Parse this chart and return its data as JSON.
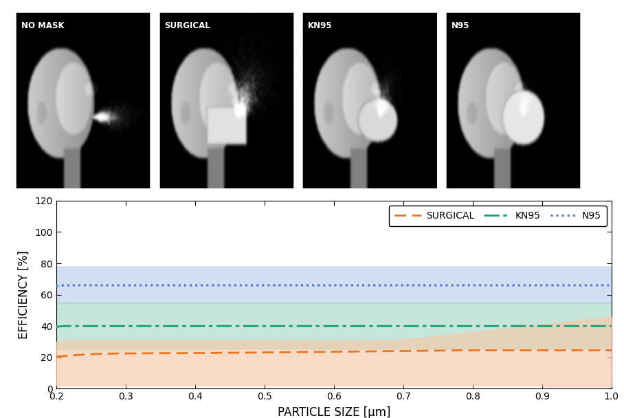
{
  "x_min": 0.2,
  "x_max": 1.0,
  "y_min": 0,
  "y_max": 120,
  "yticks": [
    0,
    20,
    40,
    60,
    80,
    100,
    120
  ],
  "xticks": [
    0.2,
    0.3,
    0.4,
    0.5,
    0.6,
    0.7,
    0.8,
    0.9,
    1.0
  ],
  "xlabel": "PARTICLE SIZE [μm]",
  "ylabel": "EFFICIENCY [%]",
  "surgical_color": "#e87722",
  "kn95_color": "#1a9e7a",
  "n95_color": "#4472c4",
  "surgical_fill": "#f5c9a8",
  "kn95_fill": "#a8d8c8",
  "n95_fill": "#adc6e8",
  "surgical_mean": [
    20.5,
    20.8,
    21.2,
    21.5,
    21.8,
    22.0,
    22.2,
    22.3,
    22.4,
    22.5,
    22.5,
    22.5,
    22.6,
    22.6,
    22.7,
    22.7,
    22.7,
    22.7,
    22.7,
    22.8,
    22.8,
    22.8,
    22.8,
    22.9,
    22.9,
    23.0,
    23.0,
    23.0,
    23.1,
    23.1,
    23.2,
    23.2,
    23.2,
    23.3,
    23.3,
    23.4,
    23.4,
    23.5,
    23.5,
    23.6,
    23.6,
    23.7,
    23.7,
    23.8,
    23.8,
    23.9,
    23.9,
    24.0,
    24.0,
    24.1,
    24.1,
    24.2,
    24.2,
    24.3,
    24.3,
    24.4,
    24.4,
    24.5,
    24.5,
    24.5,
    24.5,
    24.5,
    24.5,
    24.5,
    24.5,
    24.5,
    24.5,
    24.5,
    24.5,
    24.5,
    24.5,
    24.5,
    24.5,
    24.5,
    24.5,
    24.5,
    24.5,
    24.5,
    24.5,
    24.5
  ],
  "surgical_upper": [
    30.0,
    30.5,
    31.0,
    31.0,
    31.0,
    31.0,
    31.0,
    31.0,
    31.0,
    31.0,
    31.0,
    31.0,
    31.0,
    31.0,
    31.0,
    31.0,
    31.0,
    31.0,
    31.0,
    31.0,
    31.0,
    31.0,
    31.0,
    31.0,
    31.0,
    31.0,
    31.0,
    31.0,
    31.0,
    31.0,
    31.0,
    31.0,
    31.0,
    31.0,
    31.0,
    31.0,
    31.0,
    31.0,
    31.0,
    31.0,
    31.0,
    31.0,
    31.0,
    31.0,
    31.0,
    31.0,
    31.0,
    31.0,
    31.0,
    31.5,
    32.0,
    32.0,
    32.5,
    33.0,
    33.5,
    34.0,
    34.5,
    35.0,
    35.5,
    36.0,
    36.5,
    37.0,
    37.5,
    38.0,
    38.5,
    39.0,
    39.5,
    40.0,
    40.5,
    41.0,
    41.5,
    42.0,
    42.5,
    43.0,
    43.5,
    44.0,
    44.5,
    45.0,
    45.5,
    46.0
  ],
  "surgical_lower": [
    2.0,
    2.0,
    2.0,
    2.0,
    2.0,
    2.0,
    2.0,
    2.0,
    2.0,
    2.0,
    2.0,
    2.0,
    2.0,
    2.0,
    2.0,
    2.0,
    2.0,
    2.0,
    2.0,
    2.0,
    2.0,
    2.0,
    2.0,
    2.0,
    2.0,
    2.0,
    2.0,
    2.0,
    2.0,
    2.0,
    2.0,
    2.0,
    2.0,
    2.0,
    2.0,
    2.0,
    2.0,
    2.0,
    2.0,
    2.0,
    2.0,
    2.0,
    2.0,
    2.0,
    2.0,
    2.0,
    2.0,
    2.0,
    2.0,
    2.0,
    2.0,
    2.0,
    2.0,
    2.0,
    2.0,
    2.0,
    2.0,
    2.0,
    2.0,
    2.0,
    2.0,
    2.0,
    2.0,
    2.0,
    2.0,
    2.0,
    2.0,
    2.0,
    2.0,
    2.0,
    1.5,
    1.5,
    1.5,
    1.5,
    1.5,
    1.5,
    1.5,
    1.5,
    1.5,
    1.5
  ],
  "kn95_mean": [
    39.5,
    40.0,
    40.0,
    40.0,
    40.0,
    40.0,
    40.0,
    40.0,
    40.0,
    40.0,
    40.0,
    40.0,
    40.0,
    40.0,
    40.0,
    40.0,
    40.0,
    40.0,
    40.0,
    40.0,
    40.0,
    40.0,
    40.0,
    40.0,
    40.0,
    40.0,
    40.0,
    40.0,
    40.0,
    40.0,
    40.0,
    40.0,
    40.0,
    40.0,
    40.0,
    40.0,
    40.0,
    40.0,
    40.0,
    40.0,
    40.0,
    40.0,
    40.0,
    40.0,
    40.0,
    40.0,
    40.0,
    40.0,
    40.0,
    40.0,
    40.0,
    40.0,
    40.0,
    40.0,
    40.0,
    40.0,
    40.0,
    40.0,
    40.0,
    40.0,
    40.0,
    40.0,
    40.0,
    40.0,
    40.0,
    40.0,
    40.0,
    40.0,
    40.0,
    40.0,
    40.0,
    40.0,
    40.0,
    40.0,
    40.0,
    40.0,
    40.0,
    40.0,
    40.0,
    40.0
  ],
  "kn95_upper": [
    55.0,
    55.0,
    55.0,
    55.0,
    55.0,
    55.0,
    55.0,
    55.0,
    55.0,
    55.0,
    55.0,
    55.0,
    55.0,
    55.0,
    55.0,
    55.0,
    55.0,
    55.0,
    55.0,
    55.0,
    55.0,
    55.0,
    55.0,
    55.0,
    55.0,
    55.0,
    55.0,
    55.0,
    55.0,
    55.0,
    55.0,
    55.0,
    55.0,
    55.0,
    55.0,
    55.0,
    55.0,
    55.0,
    55.0,
    55.0,
    55.0,
    55.0,
    55.0,
    55.0,
    55.0,
    55.0,
    55.0,
    55.0,
    55.0,
    55.0,
    55.0,
    55.0,
    55.0,
    55.0,
    55.0,
    55.0,
    55.0,
    55.0,
    55.0,
    55.0,
    55.0,
    55.0,
    55.0,
    55.0,
    55.0,
    55.0,
    55.0,
    55.0,
    55.0,
    55.0,
    55.0,
    55.0,
    55.0,
    55.0,
    55.0,
    55.0,
    55.0,
    55.0,
    55.0,
    55.0
  ],
  "kn95_lower": [
    25.0,
    25.5,
    25.5,
    25.5,
    25.5,
    25.5,
    25.5,
    25.5,
    25.5,
    25.5,
    25.5,
    25.5,
    25.5,
    25.5,
    25.5,
    25.5,
    25.5,
    25.5,
    25.5,
    25.5,
    25.5,
    25.5,
    25.5,
    25.5,
    25.5,
    25.5,
    25.5,
    25.5,
    25.5,
    25.5,
    25.5,
    25.5,
    25.5,
    25.5,
    25.5,
    25.5,
    25.5,
    25.5,
    25.5,
    25.5,
    25.5,
    25.5,
    25.5,
    25.5,
    25.5,
    25.5,
    25.5,
    25.5,
    25.5,
    25.5,
    25.5,
    25.5,
    25.5,
    25.5,
    25.5,
    25.5,
    25.5,
    25.5,
    25.5,
    25.5,
    25.5,
    25.5,
    25.5,
    25.5,
    25.5,
    25.5,
    25.5,
    25.5,
    25.5,
    25.5,
    25.5,
    25.5,
    25.5,
    25.5,
    25.5,
    25.5,
    25.5,
    25.5,
    25.5,
    25.5
  ],
  "n95_mean": [
    65.5,
    66.0,
    66.0,
    66.0,
    66.0,
    66.0,
    66.0,
    66.0,
    66.0,
    66.0,
    66.0,
    66.0,
    66.0,
    66.0,
    66.0,
    66.0,
    66.0,
    66.0,
    66.0,
    66.0,
    66.0,
    66.0,
    66.0,
    66.0,
    66.0,
    66.0,
    66.0,
    66.0,
    66.0,
    66.0,
    66.0,
    66.0,
    66.0,
    66.0,
    66.0,
    66.0,
    66.0,
    66.0,
    66.0,
    66.0,
    66.0,
    66.0,
    66.0,
    66.0,
    66.0,
    66.0,
    66.0,
    66.0,
    66.0,
    66.0,
    66.0,
    66.0,
    66.0,
    66.0,
    66.0,
    66.0,
    66.0,
    66.0,
    66.0,
    66.0,
    66.0,
    66.0,
    66.0,
    66.0,
    66.0,
    66.0,
    66.0,
    66.0,
    66.0,
    66.0,
    66.0,
    66.0,
    66.0,
    66.0,
    66.0,
    66.0,
    66.0,
    66.0,
    66.0,
    66.0
  ],
  "n95_upper": [
    78.0,
    78.0,
    78.0,
    78.0,
    78.0,
    78.0,
    78.0,
    78.0,
    78.0,
    78.0,
    78.0,
    78.0,
    78.0,
    78.0,
    78.0,
    78.0,
    78.0,
    78.0,
    78.0,
    78.0,
    78.0,
    78.0,
    78.0,
    78.0,
    78.0,
    78.0,
    78.0,
    78.0,
    78.0,
    78.0,
    78.0,
    78.0,
    78.0,
    78.0,
    78.0,
    78.0,
    78.0,
    78.0,
    78.0,
    78.0,
    78.0,
    78.0,
    78.0,
    78.0,
    78.0,
    78.0,
    78.0,
    78.0,
    78.0,
    78.0,
    78.0,
    78.0,
    78.0,
    78.0,
    78.0,
    78.0,
    78.0,
    78.0,
    78.0,
    78.0,
    78.0,
    78.0,
    78.0,
    78.0,
    78.0,
    78.0,
    78.0,
    78.0,
    78.0,
    78.0,
    78.0,
    78.0,
    78.0,
    78.0,
    78.0,
    78.0,
    78.0,
    78.0,
    78.0,
    78.0
  ],
  "n95_lower": [
    54.0,
    54.5,
    54.5,
    54.5,
    54.5,
    54.5,
    54.5,
    54.5,
    54.5,
    54.5,
    54.5,
    54.5,
    54.5,
    54.5,
    54.5,
    54.5,
    54.5,
    54.5,
    54.5,
    54.5,
    54.5,
    54.5,
    54.5,
    54.5,
    54.5,
    54.5,
    54.5,
    54.5,
    54.5,
    54.5,
    54.5,
    54.5,
    54.5,
    54.5,
    54.5,
    54.5,
    54.5,
    54.5,
    54.5,
    54.5,
    54.5,
    54.5,
    54.5,
    54.5,
    54.5,
    54.5,
    54.5,
    54.5,
    54.5,
    54.5,
    54.5,
    54.5,
    54.5,
    54.5,
    54.5,
    54.5,
    54.5,
    54.5,
    54.5,
    54.5,
    54.5,
    54.5,
    54.5,
    54.5,
    54.5,
    54.5,
    54.5,
    54.5,
    54.5,
    54.5,
    54.5,
    54.5,
    54.5,
    54.5,
    54.5,
    54.5,
    54.5,
    54.5,
    54.5,
    54.5
  ],
  "image_labels": [
    "NO MASK",
    "SURGICAL",
    "KN95",
    "N95"
  ],
  "legend_fontsize": 10,
  "axis_fontsize": 12,
  "tick_fontsize": 10,
  "fig_width": 9.08,
  "fig_height": 6.08,
  "fig_dpi": 100
}
